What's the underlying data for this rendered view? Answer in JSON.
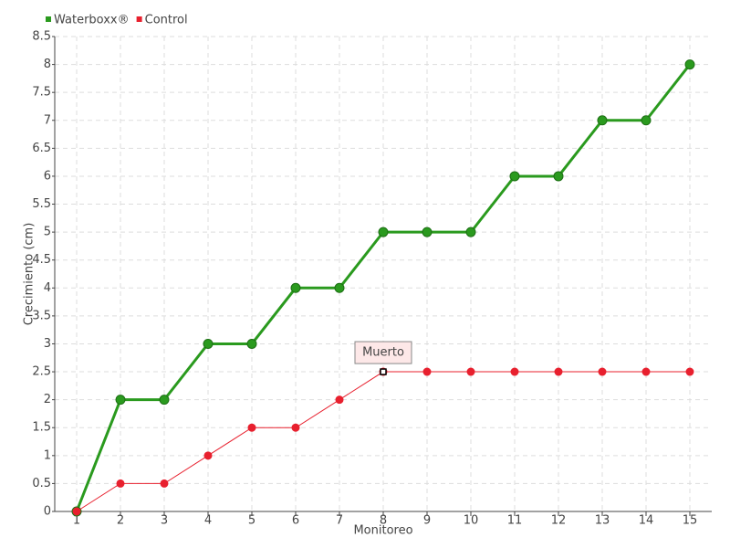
{
  "chart_data": {
    "type": "line",
    "y_label": "Crecimiento (cm)",
    "x_label": "Monitoreo",
    "categories": [
      "1",
      "2",
      "3",
      "4",
      "5",
      "6",
      "7",
      "8",
      "9",
      "10",
      "11",
      "12",
      "13",
      "14",
      "15"
    ],
    "series": [
      {
        "name": "Waterboxx®",
        "color": "#2a9a1e",
        "values": [
          0,
          2,
          2,
          3,
          3,
          4,
          4,
          5,
          5,
          5,
          6,
          6,
          7,
          7,
          8
        ]
      },
      {
        "name": "Control",
        "color": "#e8202e",
        "values": [
          0,
          0.5,
          0.5,
          1,
          1.5,
          1.5,
          2,
          2.5,
          2.5,
          2.5,
          2.5,
          2.5,
          2.5,
          2.5,
          2.5
        ]
      }
    ],
    "annotation": {
      "text": "Muerto",
      "x": "8",
      "y": 2.5
    },
    "ylim": [
      0,
      8.5
    ],
    "yticks": [
      0,
      0.5,
      1,
      1.5,
      2,
      2.5,
      3,
      3.5,
      4,
      4.5,
      5,
      5.5,
      6,
      6.5,
      7,
      7.5,
      8,
      8.5
    ],
    "grid": true,
    "legend": "top-left"
  }
}
